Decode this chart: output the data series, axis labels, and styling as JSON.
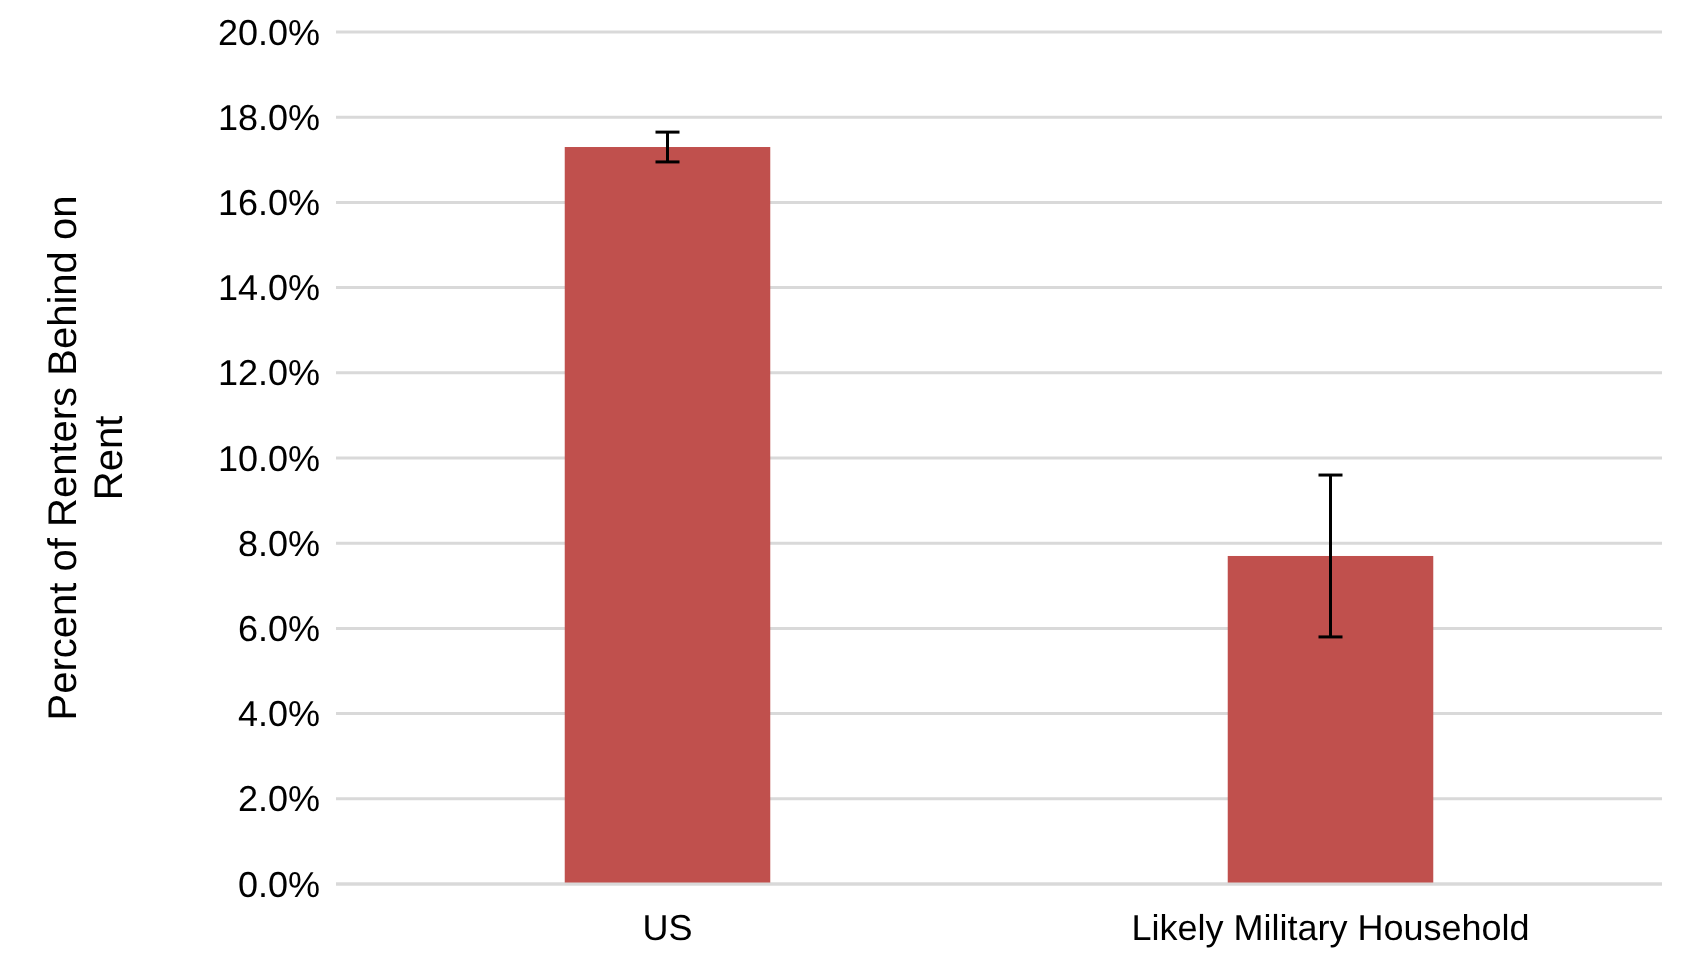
{
  "chart_data": {
    "type": "bar",
    "ylabel": "Percent of Renters Behind on Rent",
    "categories": [
      "US",
      "Likely Military Household"
    ],
    "values": [
      17.3,
      7.7
    ],
    "errors": [
      0.35,
      1.9
    ],
    "color": "#c0504d",
    "ylim": [
      0,
      20
    ],
    "yticks": [
      {
        "value": 0,
        "label": "0.0%"
      },
      {
        "value": 2,
        "label": "2.0%"
      },
      {
        "value": 4,
        "label": "4.0%"
      },
      {
        "value": 6,
        "label": "6.0%"
      },
      {
        "value": 8,
        "label": "8.0%"
      },
      {
        "value": 10,
        "label": "10.0%"
      },
      {
        "value": 12,
        "label": "12.0%"
      },
      {
        "value": 14,
        "label": "14.0%"
      },
      {
        "value": 16,
        "label": "16.0%"
      },
      {
        "value": 18,
        "label": "18.0%"
      },
      {
        "value": 20,
        "label": "20.0%"
      }
    ],
    "grid": "y"
  }
}
